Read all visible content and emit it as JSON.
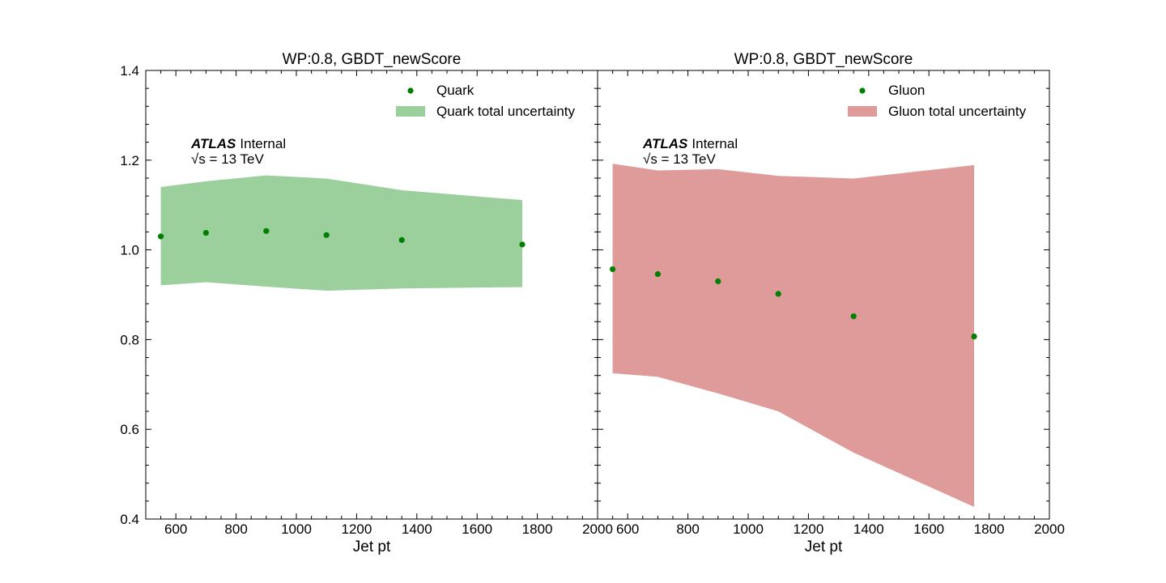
{
  "chart_data": [
    {
      "type": "scatter",
      "title": "WP:0.8, GBDT_newScore",
      "xlabel": "Jet pt",
      "ylabel": "",
      "xlim": [
        500,
        2000
      ],
      "ylim": [
        0.4,
        1.4
      ],
      "xticks": [
        "600",
        "800",
        "1000",
        "1200",
        "1400",
        "1600",
        "1800",
        "2000"
      ],
      "yticks": [
        "0.4",
        "0.6",
        "0.8",
        "1.0",
        "1.2",
        "1.4"
      ],
      "atlas_label": "ATLAS",
      "atlas_status": "Internal",
      "energy_label": "√s = 13 TeV",
      "legend": {
        "location": "top-right",
        "marker_label": "Quark",
        "band_label": "Quark total uncertainty"
      },
      "colors": {
        "marker": "#008000",
        "band": "#9bcf9b"
      },
      "series": [
        {
          "name": "Quark",
          "x": [
            550,
            700,
            900,
            1100,
            1350,
            1750
          ],
          "y": [
            1.03,
            1.038,
            1.042,
            1.033,
            1.022,
            1.012
          ],
          "band_low": [
            0.921,
            0.928,
            0.918,
            0.909,
            0.914,
            0.917
          ],
          "band_high": [
            1.14,
            1.153,
            1.166,
            1.159,
            1.133,
            1.111
          ]
        }
      ]
    },
    {
      "type": "scatter",
      "title": "WP:0.8, GBDT_newScore",
      "xlabel": "Jet pt",
      "ylabel": "",
      "xlim": [
        500,
        2000
      ],
      "ylim": [
        0.4,
        1.4
      ],
      "xticks": [
        "600",
        "800",
        "1000",
        "1200",
        "1400",
        "1600",
        "1800",
        "2000"
      ],
      "yticks": [
        "0.4",
        "0.6",
        "0.8",
        "1.0",
        "1.2",
        "1.4"
      ],
      "atlas_label": "ATLAS",
      "atlas_status": "Internal",
      "energy_label": "√s = 13 TeV",
      "legend": {
        "location": "top-right",
        "marker_label": "Gluon",
        "band_label": "Gluon total uncertainty"
      },
      "colors": {
        "marker": "#008000",
        "band": "#df9a9a"
      },
      "series": [
        {
          "name": "Gluon",
          "x": [
            550,
            700,
            900,
            1100,
            1350,
            1750
          ],
          "y": [
            0.957,
            0.946,
            0.93,
            0.902,
            0.852,
            0.807
          ],
          "band_low": [
            0.725,
            0.717,
            0.68,
            0.64,
            0.548,
            0.427
          ],
          "band_high": [
            1.192,
            1.177,
            1.18,
            1.165,
            1.159,
            1.189
          ]
        }
      ]
    }
  ]
}
